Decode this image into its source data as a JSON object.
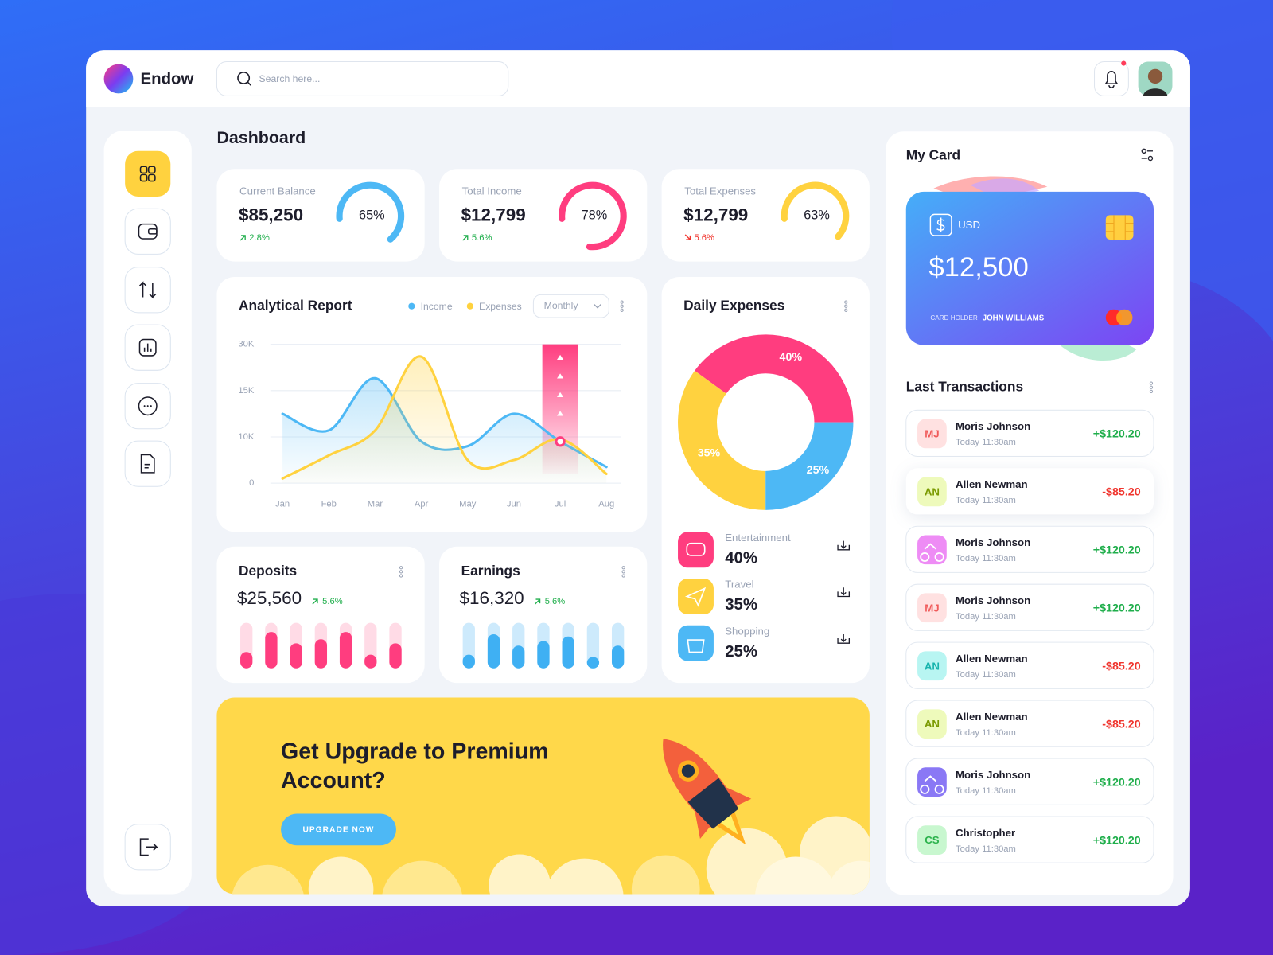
{
  "header": {
    "brand": "Endow",
    "search_placeholder": "Search here..."
  },
  "page_title": "Dashboard",
  "stats": [
    {
      "label": "Current Balance",
      "value": "$85,250",
      "change": "2.8%",
      "direction": "up",
      "percent": 65,
      "percent_label": "65%",
      "color": "#4db8f5"
    },
    {
      "label": "Total Income",
      "value": "$12,799",
      "change": "5.6%",
      "direction": "up",
      "percent": 78,
      "percent_label": "78%",
      "color": "#ff3d7f"
    },
    {
      "label": "Total Expenses",
      "value": "$12,799",
      "change": "5.6%",
      "direction": "down",
      "percent": 63,
      "percent_label": "63%",
      "color": "#ffd23f"
    }
  ],
  "analytical_report": {
    "title": "Analytical Report",
    "type": "line",
    "period": "Monthly",
    "categories": [
      "Jan",
      "Feb",
      "Mar",
      "Apr",
      "May",
      "Jun",
      "Jul",
      "Aug"
    ],
    "ylim": [
      0,
      30000
    ],
    "yticks": [
      0,
      {
        "value": 10000,
        "label": "10K"
      },
      {
        "value": 15000,
        "label": "15K"
      },
      {
        "value": 30000,
        "label": "30K"
      }
    ],
    "grid": true,
    "series": [
      {
        "name": "Income",
        "color": "#4db8f5",
        "values": [
          12500,
          10700,
          19000,
          9000,
          8000,
          12500,
          9000,
          3500
        ]
      },
      {
        "name": "Expenses",
        "color": "#ffd23f",
        "values": [
          1000,
          6000,
          10700,
          26000,
          5000,
          5000,
          9500,
          2000
        ]
      }
    ]
  },
  "daily_expenses": {
    "title": "Daily Expenses",
    "type": "donut",
    "categories": [
      "Entertainment",
      "Travel",
      "Shopping"
    ],
    "values": [
      40,
      35,
      25
    ],
    "value_labels": [
      "40%",
      "35%",
      "25%"
    ],
    "colors": [
      "#ff3d7f",
      "#ffd23f",
      "#4db8f5"
    ]
  },
  "deposits": {
    "title": "Deposits",
    "amount": "$25,560",
    "change": "5.6%",
    "type": "bar",
    "values": [
      36,
      80,
      55,
      64,
      80,
      30,
      55
    ],
    "ylim": [
      0,
      100
    ],
    "color": "#ff3d7f",
    "track_color": "#ffdbe6"
  },
  "earnings": {
    "title": "Earnings",
    "amount": "$16,320",
    "change": "5.6%",
    "type": "bar",
    "values": [
      30,
      75,
      50,
      60,
      70,
      25,
      50
    ],
    "ylim": [
      0,
      100
    ],
    "color": "#3fb0f3",
    "track_color": "#cdeafc"
  },
  "banner": {
    "title_lines": [
      "Get Upgrade to Premium",
      "Account?"
    ],
    "button": "UPGRADE NOW"
  },
  "my_card": {
    "title": "My Card",
    "currency": "USD",
    "balance": "$12,500",
    "holder_label": "CARD HOLDER",
    "holder_name": "JOHN WILLIAMS"
  },
  "transactions": {
    "title": "Last Transactions",
    "items": [
      {
        "initials": "MJ",
        "name": "Moris Johnson",
        "time": "Today 11:30am",
        "amount": "+$120.20",
        "avatar_color": "#ffe1e1",
        "text_color": "#f05a5a"
      },
      {
        "initials": "AN",
        "name": "Allen Newman",
        "time": "Today 11:30am",
        "amount": "-$85.20",
        "avatar_color": "#eefabb",
        "text_color": "#7a9a00"
      },
      {
        "name": "Moris Johnson",
        "time": "Today 11:30am",
        "amount": "+$120.20",
        "avatar_color": "#ee8cf5",
        "text_color": "#ffffff"
      },
      {
        "initials": "MJ",
        "name": "Moris Johnson",
        "time": "Today 11:30am",
        "amount": "+$120.20",
        "avatar_color": "#ffe1e1",
        "text_color": "#f05a5a"
      },
      {
        "initials": "AN",
        "name": "Allen Newman",
        "time": "Today 11:30am",
        "amount": "-$85.20",
        "avatar_color": "#b8f5f2",
        "text_color": "#17b4ad"
      },
      {
        "initials": "AN",
        "name": "Allen Newman",
        "time": "Today 11:30am",
        "amount": "-$85.20",
        "avatar_color": "#eefabb",
        "text_color": "#7a9a00"
      },
      {
        "name": "Moris Johnson",
        "time": "Today 11:30am",
        "amount": "+$120.20",
        "avatar_color": "#8a78f5",
        "text_color": "#ffffff"
      },
      {
        "initials": "CS",
        "name": "Christopher",
        "time": "Today 11:30am",
        "amount": "+$120.20",
        "avatar_color": "#c8f7cf",
        "text_color": "#2bb24c"
      }
    ]
  }
}
